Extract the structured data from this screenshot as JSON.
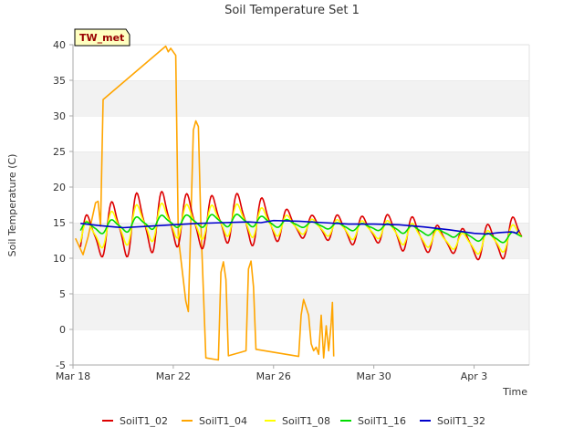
{
  "chart_data": {
    "type": "line",
    "title": "Soil Temperature Set 1",
    "xlabel": "Time",
    "ylabel": "Soil Temperature (C)",
    "ylim": [
      -5,
      40
    ],
    "xlim": [
      0,
      18.2
    ],
    "yticks": [
      -5,
      0,
      5,
      10,
      15,
      20,
      25,
      30,
      35,
      40
    ],
    "xticks": [
      {
        "pos": 0,
        "label": "Mar 18"
      },
      {
        "pos": 4,
        "label": "Mar 22"
      },
      {
        "pos": 8,
        "label": "Mar 26"
      },
      {
        "pos": 12,
        "label": "Mar 30"
      },
      {
        "pos": 16,
        "label": "Apr 3"
      }
    ],
    "station_tag": "TW_met",
    "grid": "horizontal bands",
    "legend_position": "bottom",
    "series": [
      {
        "name": "SoilT1_02",
        "color": "#dd0000",
        "mean": [
          12.5,
          13.5,
          14.5,
          15.0,
          15.5,
          15.0,
          15.5,
          15.5,
          15.0,
          14.5,
          14.3,
          14.0,
          14.0,
          13.8,
          13.0,
          12.5,
          12.0,
          12.5,
          13.5,
          13.5
        ],
        "amp": [
          2.5,
          3.0,
          4.0,
          4.0,
          3.5,
          3.5,
          3.0,
          3.5,
          2.5,
          1.5,
          1.5,
          2.0,
          1.5,
          2.5,
          2.0,
          1.5,
          2.0,
          2.5,
          2.5,
          2.5
        ]
      },
      {
        "name": "SoilT1_04",
        "color": "#ffa500",
        "points": [
          [
            0.1,
            12.8
          ],
          [
            0.4,
            10.5
          ],
          [
            0.6,
            13.0
          ],
          [
            0.9,
            17.8
          ],
          [
            1.0,
            18.0
          ],
          [
            1.1,
            14.5
          ],
          [
            1.2,
            32.3
          ],
          [
            3.7,
            39.8
          ],
          [
            3.8,
            39.0
          ],
          [
            3.9,
            39.5
          ],
          [
            4.1,
            38.5
          ],
          [
            4.2,
            13.0
          ],
          [
            4.5,
            4.0
          ],
          [
            4.6,
            2.5
          ],
          [
            4.8,
            28.0
          ],
          [
            4.9,
            29.3
          ],
          [
            5.0,
            28.5
          ],
          [
            5.1,
            15.0
          ],
          [
            5.3,
            -4.0
          ],
          [
            5.8,
            -4.3
          ],
          [
            5.9,
            8.0
          ],
          [
            6.0,
            9.5
          ],
          [
            6.1,
            7.0
          ],
          [
            6.2,
            -3.7
          ],
          [
            6.7,
            -3.2
          ],
          [
            6.9,
            -3.0
          ],
          [
            7.0,
            8.5
          ],
          [
            7.1,
            9.6
          ],
          [
            7.2,
            6.0
          ],
          [
            7.3,
            -2.8
          ],
          [
            9.0,
            -3.8
          ],
          [
            9.1,
            2.0
          ],
          [
            9.2,
            4.2
          ],
          [
            9.4,
            2.0
          ],
          [
            9.5,
            -2.0
          ],
          [
            9.6,
            -3.0
          ],
          [
            9.7,
            -2.5
          ],
          [
            9.8,
            -3.5
          ],
          [
            9.9,
            2.0
          ],
          [
            10.0,
            -4.0
          ],
          [
            10.1,
            0.5
          ],
          [
            10.2,
            -3.0
          ],
          [
            10.3,
            1.0
          ],
          [
            10.35,
            3.8
          ],
          [
            10.4,
            -3.8
          ]
        ]
      },
      {
        "name": "SoilT1_08",
        "color": "#ffff00",
        "mean": [
          12.8,
          13.6,
          14.5,
          15.0,
          15.3,
          15.0,
          15.3,
          15.3,
          14.8,
          14.5,
          14.3,
          14.0,
          14.0,
          13.7,
          13.0,
          12.5,
          12.0,
          12.5,
          13.3,
          13.3
        ],
        "amp": [
          1.6,
          2.0,
          2.5,
          2.5,
          2.2,
          2.2,
          2.0,
          2.2,
          1.6,
          1.0,
          1.0,
          1.3,
          1.0,
          1.6,
          1.3,
          1.0,
          1.3,
          1.6,
          1.6,
          1.6
        ]
      },
      {
        "name": "SoilT1_16",
        "color": "#00dd00",
        "mean": [
          14.2,
          14.3,
          14.6,
          15.0,
          15.2,
          15.2,
          15.3,
          15.3,
          15.0,
          14.8,
          14.6,
          14.4,
          14.4,
          14.2,
          13.8,
          13.5,
          13.0,
          12.8,
          13.2,
          13.6
        ],
        "amp": [
          0.7,
          0.8,
          0.9,
          0.9,
          0.8,
          0.8,
          0.8,
          0.8,
          0.6,
          0.4,
          0.4,
          0.5,
          0.4,
          0.6,
          0.5,
          0.4,
          0.5,
          0.6,
          0.6,
          0.6
        ]
      },
      {
        "name": "SoilT1_32",
        "color": "#0000cc",
        "points": [
          [
            0.3,
            14.9
          ],
          [
            1.0,
            14.6
          ],
          [
            2.0,
            14.3
          ],
          [
            3.0,
            14.5
          ],
          [
            4.0,
            14.7
          ],
          [
            5.0,
            14.9
          ],
          [
            6.0,
            15.0
          ],
          [
            7.0,
            15.1
          ],
          [
            7.5,
            15.0
          ],
          [
            8.0,
            15.3
          ],
          [
            9.0,
            15.2
          ],
          [
            10.0,
            15.0
          ],
          [
            11.0,
            14.8
          ],
          [
            12.0,
            14.8
          ],
          [
            13.0,
            14.7
          ],
          [
            14.0,
            14.4
          ],
          [
            15.0,
            14.0
          ],
          [
            16.0,
            13.5
          ],
          [
            16.5,
            13.4
          ],
          [
            17.0,
            13.6
          ],
          [
            17.5,
            13.7
          ],
          [
            17.7,
            13.5
          ],
          [
            17.8,
            14.0
          ]
        ]
      }
    ]
  }
}
